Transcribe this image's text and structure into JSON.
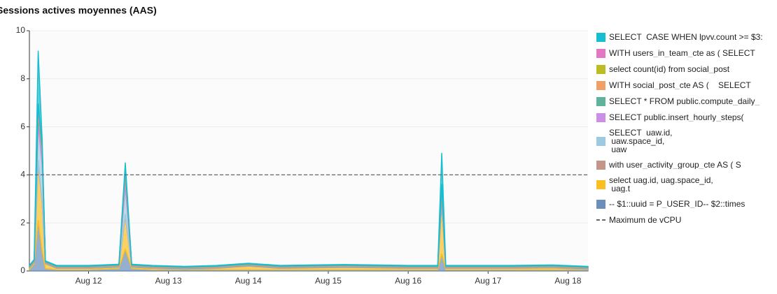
{
  "chart_data": {
    "type": "stacked-area",
    "title": "Sessions actives moyennes (AAS)",
    "x": [
      11.26,
      11.32,
      11.37,
      11.42,
      11.46,
      11.6,
      12.0,
      12.38,
      12.46,
      12.54,
      12.8,
      13.2,
      13.6,
      14.0,
      14.4,
      14.8,
      15.2,
      15.6,
      16.0,
      16.37,
      16.42,
      16.47,
      16.8,
      17.3,
      17.8,
      18.25
    ],
    "xlim": [
      11.26,
      18.25
    ],
    "xticks": [
      {
        "value": 12,
        "label": "Aug 12"
      },
      {
        "value": 13,
        "label": "Aug 13"
      },
      {
        "value": 14,
        "label": "Aug 14"
      },
      {
        "value": 15,
        "label": "Aug 15"
      },
      {
        "value": 16,
        "label": "Aug 16"
      },
      {
        "value": 17,
        "label": "Aug 17"
      },
      {
        "value": 18,
        "label": "Aug 18"
      }
    ],
    "ylim": [
      0,
      10
    ],
    "yticks": [
      0,
      2,
      4,
      6,
      8,
      10
    ],
    "grid": true,
    "threshold": {
      "name": "Maximum de vCPU",
      "value": 4
    },
    "series": [
      {
        "name": "-- $1::uuid = P_USER_ID-- $2::times",
        "color": "#6a8fba",
        "values": [
          0.05,
          0.3,
          2.1,
          0.8,
          0.1,
          0.05,
          0.05,
          0.1,
          0.9,
          0.1,
          0.05,
          0.05,
          0.05,
          0.05,
          0.05,
          0.05,
          0.05,
          0.05,
          0.05,
          0.05,
          0.7,
          0.05,
          0.05,
          0.05,
          0.05,
          0.05
        ]
      },
      {
        "name": "select uag.id, uag.space_id,\n uag.t",
        "color": "#fbbf24",
        "values": [
          0.06,
          0.06,
          2.4,
          2.0,
          0.2,
          0.06,
          0.06,
          0.06,
          1.4,
          0.06,
          0.06,
          0.02,
          0.06,
          0.15,
          0.06,
          0.08,
          0.1,
          0.08,
          0.06,
          0.06,
          2.1,
          0.06,
          0.06,
          0.06,
          0.08,
          0.02
        ]
      },
      {
        "name": "with user_activity_group_cte AS ( S",
        "color": "#c4968a",
        "values": [
          0.01,
          0.01,
          0.1,
          0.01,
          0.01,
          0.01,
          0.01,
          0.01,
          0.05,
          0.01,
          0.01,
          0.01,
          0.01,
          0.01,
          0.01,
          0.01,
          0.01,
          0.01,
          0.01,
          0.01,
          0.05,
          0.01,
          0.01,
          0.01,
          0.01,
          0.01
        ]
      },
      {
        "name": "SELECT  uaw.id,\n uaw.space_id,\n uaw",
        "color": "#9ecae1",
        "values": [
          0.01,
          0.01,
          1.5,
          1.6,
          0.01,
          0.01,
          0.01,
          0.01,
          1.2,
          0.01,
          0.01,
          0.01,
          0.01,
          0.01,
          0.01,
          0.01,
          0.01,
          0.01,
          0.01,
          0.01,
          0.2,
          0.01,
          0.01,
          0.01,
          0.01,
          0.01
        ]
      },
      {
        "name": "SELECT public.insert_hourly_steps(",
        "color": "#cc8fe6",
        "values": [
          0.01,
          0.01,
          0.3,
          0.5,
          0.01,
          0.01,
          0.01,
          0.01,
          0.4,
          0.01,
          0.01,
          0.01,
          0.01,
          0.01,
          0.01,
          0.01,
          0.01,
          0.01,
          0.01,
          0.01,
          0.1,
          0.01,
          0.01,
          0.01,
          0.01,
          0.01
        ]
      },
      {
        "name": "SELECT * FROM public.compute_daily_",
        "color": "#5fb39d",
        "values": [
          0.02,
          0.02,
          0.2,
          0.02,
          0.02,
          0.02,
          0.02,
          0.02,
          0.1,
          0.02,
          0.02,
          0.02,
          0.02,
          0.02,
          0.02,
          0.02,
          0.02,
          0.02,
          0.02,
          0.02,
          0.2,
          0.02,
          0.02,
          0.02,
          0.02,
          0.02
        ]
      },
      {
        "name": "WITH social_post_cte AS (    SELECT",
        "color": "#f0a067",
        "values": [
          0.02,
          0.02,
          0.1,
          0.2,
          0.02,
          0.02,
          0.02,
          0.02,
          0.1,
          0.02,
          0.02,
          0.02,
          0.02,
          0.02,
          0.02,
          0.02,
          0.02,
          0.02,
          0.02,
          0.02,
          0.1,
          0.02,
          0.02,
          0.02,
          0.02,
          0.02
        ]
      },
      {
        "name": "select count(id) from social_post",
        "color": "#bcbd22",
        "values": [
          0.01,
          0.01,
          0.05,
          0.01,
          0.01,
          0.01,
          0.01,
          0.01,
          0.05,
          0.01,
          0.01,
          0.01,
          0.01,
          0.01,
          0.01,
          0.01,
          0.01,
          0.01,
          0.01,
          0.01,
          0.05,
          0.01,
          0.01,
          0.01,
          0.01,
          0.01
        ]
      },
      {
        "name": "WITH users_in_team_cte as ( SELECT",
        "color": "#e377c2",
        "values": [
          0.01,
          0.01,
          0.2,
          0.01,
          0.01,
          0.01,
          0.01,
          0.01,
          0.1,
          0.01,
          0.01,
          0.01,
          0.01,
          0.01,
          0.01,
          0.01,
          0.01,
          0.01,
          0.01,
          0.01,
          0.1,
          0.01,
          0.01,
          0.01,
          0.01,
          0.01
        ]
      },
      {
        "name": "SELECT  CASE WHEN lpvv.count >= $3:",
        "color": "#17becf",
        "values": [
          0.03,
          0.03,
          2.2,
          0.3,
          0.03,
          0.03,
          0.03,
          0.03,
          0.2,
          0.03,
          0.03,
          0.03,
          0.03,
          0.03,
          0.03,
          0.03,
          0.03,
          0.03,
          0.03,
          0.03,
          1.3,
          0.03,
          0.03,
          0.03,
          0.03,
          0.03
        ]
      }
    ]
  }
}
